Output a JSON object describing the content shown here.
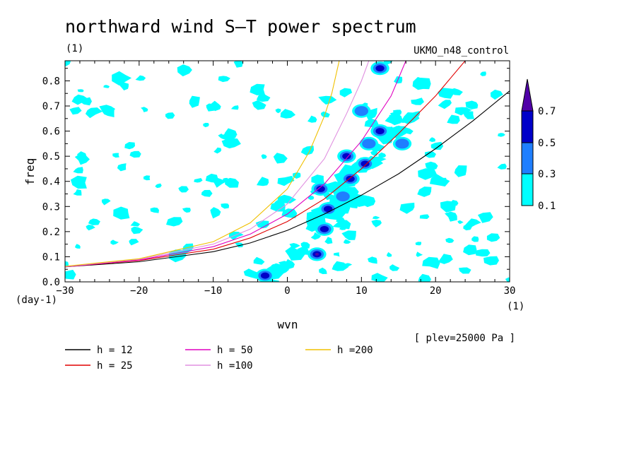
{
  "chart_data": {
    "type": "contour",
    "title": "northward wind S–T power spectrum",
    "subtitle": "(1)",
    "model": "UKMO_n48_control",
    "xlabel": "wvn",
    "ylabel": "freq",
    "x_unit": "(1)",
    "y_unit": "(day-1)",
    "xlim": [
      -30,
      30
    ],
    "ylim": [
      0,
      0.88
    ],
    "xticks": [
      -30,
      -20,
      -10,
      0,
      10,
      20,
      30
    ],
    "yticks": [
      0.0,
      0.1,
      0.2,
      0.3,
      0.4,
      0.5,
      0.6,
      0.7,
      0.8
    ],
    "ytick_labels": [
      "0.0",
      "0.1",
      "0.2",
      "0.3",
      "0.4",
      "0.5",
      "0.6",
      "0.7",
      "0.8"
    ],
    "level_note": "[ plev=25000 Pa ]",
    "contour_levels": [
      0.1,
      0.3,
      0.5,
      0.7
    ],
    "colorbar_labels": [
      "0.1",
      "0.3",
      "0.5",
      "0.7"
    ],
    "colorbar_colors": [
      "#00ffff",
      "#1f7fff",
      "#0000c8",
      "#5000a8"
    ],
    "dispersion_curves": [
      {
        "name": "h = 12",
        "label": "h = 12",
        "h": 12,
        "color": "#000000",
        "x": [
          -30,
          -20,
          -10,
          -5,
          0,
          5,
          10,
          15,
          20,
          25,
          30
        ],
        "y": [
          0.06,
          0.08,
          0.12,
          0.155,
          0.205,
          0.27,
          0.345,
          0.43,
          0.53,
          0.64,
          0.76
        ]
      },
      {
        "name": "h = 25",
        "label": "h = 25",
        "h": 25,
        "color": "#e00000",
        "x": [
          -30,
          -20,
          -10,
          -5,
          0,
          5,
          10,
          15,
          20,
          24
        ],
        "y": [
          0.06,
          0.085,
          0.13,
          0.175,
          0.24,
          0.33,
          0.45,
          0.59,
          0.74,
          0.88
        ]
      },
      {
        "name": "h = 50",
        "label": "h = 50",
        "h": 50,
        "color": "#e000c0",
        "x": [
          -30,
          -20,
          -10,
          -5,
          0,
          5,
          10,
          14,
          16
        ],
        "y": [
          0.06,
          0.087,
          0.14,
          0.19,
          0.27,
          0.39,
          0.56,
          0.74,
          0.88
        ]
      },
      {
        "name": "h =100",
        "label": "h =100",
        "h": 100,
        "color": "#e090e0",
        "x": [
          -30,
          -20,
          -10,
          -5,
          0,
          5,
          8,
          10,
          11
        ],
        "y": [
          0.061,
          0.09,
          0.15,
          0.21,
          0.31,
          0.49,
          0.67,
          0.8,
          0.88
        ]
      },
      {
        "name": "h =200",
        "label": "h =200",
        "h": 200,
        "color": "#f0c000",
        "x": [
          -30,
          -20,
          -10,
          -5,
          0,
          3,
          5,
          6,
          7
        ],
        "y": [
          0.062,
          0.092,
          0.16,
          0.235,
          0.37,
          0.52,
          0.66,
          0.75,
          0.88
        ]
      }
    ],
    "spectral_peaks": [
      {
        "x": 4.0,
        "y": 0.11,
        "level": 0.7
      },
      {
        "x": -3.0,
        "y": 0.025,
        "level": 0.5
      },
      {
        "x": 5.0,
        "y": 0.21,
        "level": 0.5
      },
      {
        "x": 5.5,
        "y": 0.29,
        "level": 0.5
      },
      {
        "x": 7.5,
        "y": 0.34,
        "level": 0.3
      },
      {
        "x": 4.5,
        "y": 0.37,
        "level": 0.5
      },
      {
        "x": 8.5,
        "y": 0.41,
        "level": 0.5
      },
      {
        "x": 10.5,
        "y": 0.47,
        "level": 0.5
      },
      {
        "x": 8.0,
        "y": 0.5,
        "level": 0.5
      },
      {
        "x": 11.0,
        "y": 0.55,
        "level": 0.3
      },
      {
        "x": 12.5,
        "y": 0.6,
        "level": 0.5
      },
      {
        "x": 10.0,
        "y": 0.68,
        "level": 0.3
      },
      {
        "x": 12.5,
        "y": 0.85,
        "level": 0.5
      },
      {
        "x": 15.5,
        "y": 0.55,
        "level": 0.3
      }
    ]
  }
}
